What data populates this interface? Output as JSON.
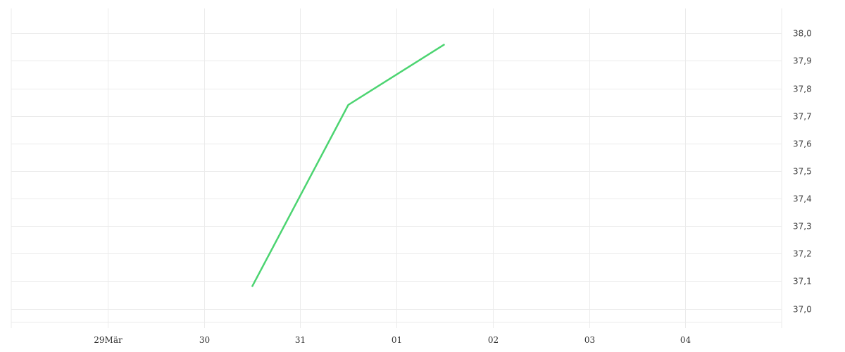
{
  "chart_data": {
    "type": "line",
    "title": "",
    "xlabel": "",
    "ylabel": "",
    "x_axis": {
      "ticks": [
        {
          "date": "03-29",
          "label": "29Mär"
        },
        {
          "date": "03-30",
          "label": "30"
        },
        {
          "date": "03-31",
          "label": "31"
        },
        {
          "date": "04-01",
          "label": "01"
        },
        {
          "date": "04-02",
          "label": "02"
        },
        {
          "date": "04-03",
          "label": "03"
        },
        {
          "date": "04-04",
          "label": "04"
        }
      ],
      "range": [
        "03-28 00:00",
        "04-05 00:00"
      ]
    },
    "y_axis": {
      "position": "right",
      "ticks": [
        "38,0",
        "37,9",
        "37,8",
        "37,7",
        "37,6",
        "37,5",
        "37,4",
        "37,3",
        "37,2",
        "37,1",
        "37,0"
      ],
      "tick_values": [
        38.0,
        37.9,
        37.8,
        37.7,
        37.6,
        37.5,
        37.4,
        37.3,
        37.2,
        37.1,
        37.0
      ],
      "range": [
        36.93,
        38.09
      ]
    },
    "grid": true,
    "series": [
      {
        "color": "#4cd471",
        "points": [
          {
            "x": "03-30 12:00",
            "y": 37.08
          },
          {
            "x": "03-31 12:00",
            "y": 37.74
          },
          {
            "x": "04-01 12:00",
            "y": 37.96
          }
        ]
      }
    ]
  }
}
